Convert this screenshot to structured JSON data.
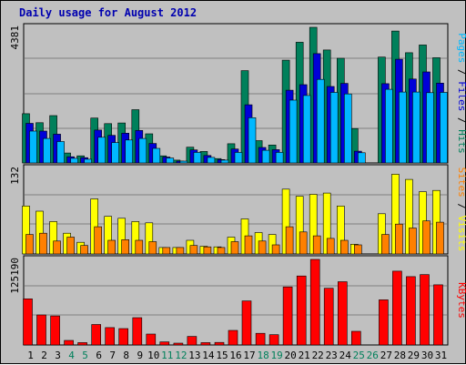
{
  "window": {
    "title": "Daily usage for August 2012"
  },
  "colors": {
    "background": "#c0c0c0",
    "plot": "#c0c0c0",
    "grid": "#808080",
    "hits": "#00805b",
    "files": "#0000d8",
    "pages": "#00b8ff",
    "visits": "#ffff00",
    "sites": "#ff8000",
    "kbytes": "#ff0000",
    "title": "#0000b0",
    "weekday": "#000000",
    "weekend": "#00805b"
  },
  "chart_data": [
    {
      "type": "bar",
      "panel": "top",
      "y_max_label": "4381",
      "ylim": [
        0,
        4381
      ],
      "side_labels": [
        "Pages",
        "Files",
        "Hits"
      ],
      "categories": [
        "1",
        "2",
        "3",
        "4",
        "5",
        "6",
        "7",
        "8",
        "9",
        "10",
        "11",
        "12",
        "13",
        "14",
        "15",
        "16",
        "17",
        "18",
        "19",
        "20",
        "21",
        "22",
        "23",
        "24",
        "25",
        "26",
        "27",
        "28",
        "29",
        "30",
        "31"
      ],
      "weekend_days": [
        "4",
        "5",
        "11",
        "12",
        "18",
        "19",
        "25",
        "26"
      ],
      "series": [
        {
          "name": "Hits",
          "values": [
            1590,
            1300,
            1530,
            320,
            230,
            1450,
            1270,
            1290,
            1720,
            940,
            230,
            90,
            510,
            370,
            140,
            620,
            2980,
            720,
            580,
            3320,
            3900,
            4381,
            3650,
            3380,
            1110,
            0,
            3420,
            4260,
            3560,
            3810,
            3400
          ]
        },
        {
          "name": "Files",
          "values": [
            1280,
            1030,
            930,
            200,
            170,
            1060,
            890,
            960,
            1050,
            630,
            190,
            50,
            420,
            240,
            110,
            450,
            1880,
            500,
            430,
            2350,
            2530,
            3530,
            2470,
            2570,
            380,
            0,
            2560,
            3350,
            2710,
            2940,
            2580
          ]
        },
        {
          "name": "Pages",
          "values": [
            1030,
            790,
            690,
            150,
            120,
            830,
            660,
            740,
            790,
            470,
            160,
            40,
            340,
            180,
            90,
            340,
            1460,
            410,
            340,
            2030,
            2180,
            2700,
            2280,
            2230,
            330,
            0,
            2380,
            2290,
            2290,
            2270,
            2280
          ]
        }
      ]
    },
    {
      "type": "bar",
      "panel": "middle",
      "y_max_label": "132",
      "ylim": [
        0,
        132
      ],
      "side_labels": [
        "Sites",
        "Visits"
      ],
      "categories": [
        "1",
        "2",
        "3",
        "4",
        "5",
        "6",
        "7",
        "8",
        "9",
        "10",
        "11",
        "12",
        "13",
        "14",
        "15",
        "16",
        "17",
        "18",
        "19",
        "20",
        "21",
        "22",
        "23",
        "24",
        "25",
        "26",
        "27",
        "28",
        "29",
        "30",
        "31"
      ],
      "series": [
        {
          "name": "Visits",
          "values": [
            74,
            66,
            50,
            32,
            18,
            85,
            58,
            55,
            50,
            48,
            10,
            10,
            21,
            12,
            11,
            26,
            54,
            33,
            30,
            100,
            89,
            92,
            94,
            74,
            15,
            0,
            62,
            123,
            115,
            96,
            98
          ]
        },
        {
          "name": "Sites",
          "values": [
            30,
            32,
            20,
            26,
            13,
            42,
            21,
            22,
            21,
            19,
            10,
            10,
            13,
            11,
            10,
            19,
            28,
            20,
            14,
            42,
            34,
            28,
            24,
            21,
            14,
            0,
            30,
            46,
            40,
            51,
            49
          ]
        }
      ]
    },
    {
      "type": "bar",
      "panel": "bottom",
      "y_max_label": "125190",
      "ylim": [
        0,
        125190
      ],
      "side_labels": [
        "KBytes"
      ],
      "categories": [
        "1",
        "2",
        "3",
        "4",
        "5",
        "6",
        "7",
        "8",
        "9",
        "10",
        "11",
        "12",
        "13",
        "14",
        "15",
        "16",
        "17",
        "18",
        "19",
        "20",
        "21",
        "22",
        "23",
        "24",
        "25",
        "26",
        "27",
        "28",
        "29",
        "30",
        "31"
      ],
      "series": [
        {
          "name": "KBytes",
          "values": [
            67500,
            44000,
            42500,
            6700,
            3400,
            30000,
            25400,
            24000,
            40000,
            16000,
            4500,
            2500,
            12500,
            3400,
            3700,
            21300,
            64400,
            17000,
            15000,
            85000,
            101000,
            125190,
            83000,
            92500,
            20000,
            0,
            66000,
            108000,
            100000,
            103000,
            88000
          ]
        }
      ]
    }
  ]
}
